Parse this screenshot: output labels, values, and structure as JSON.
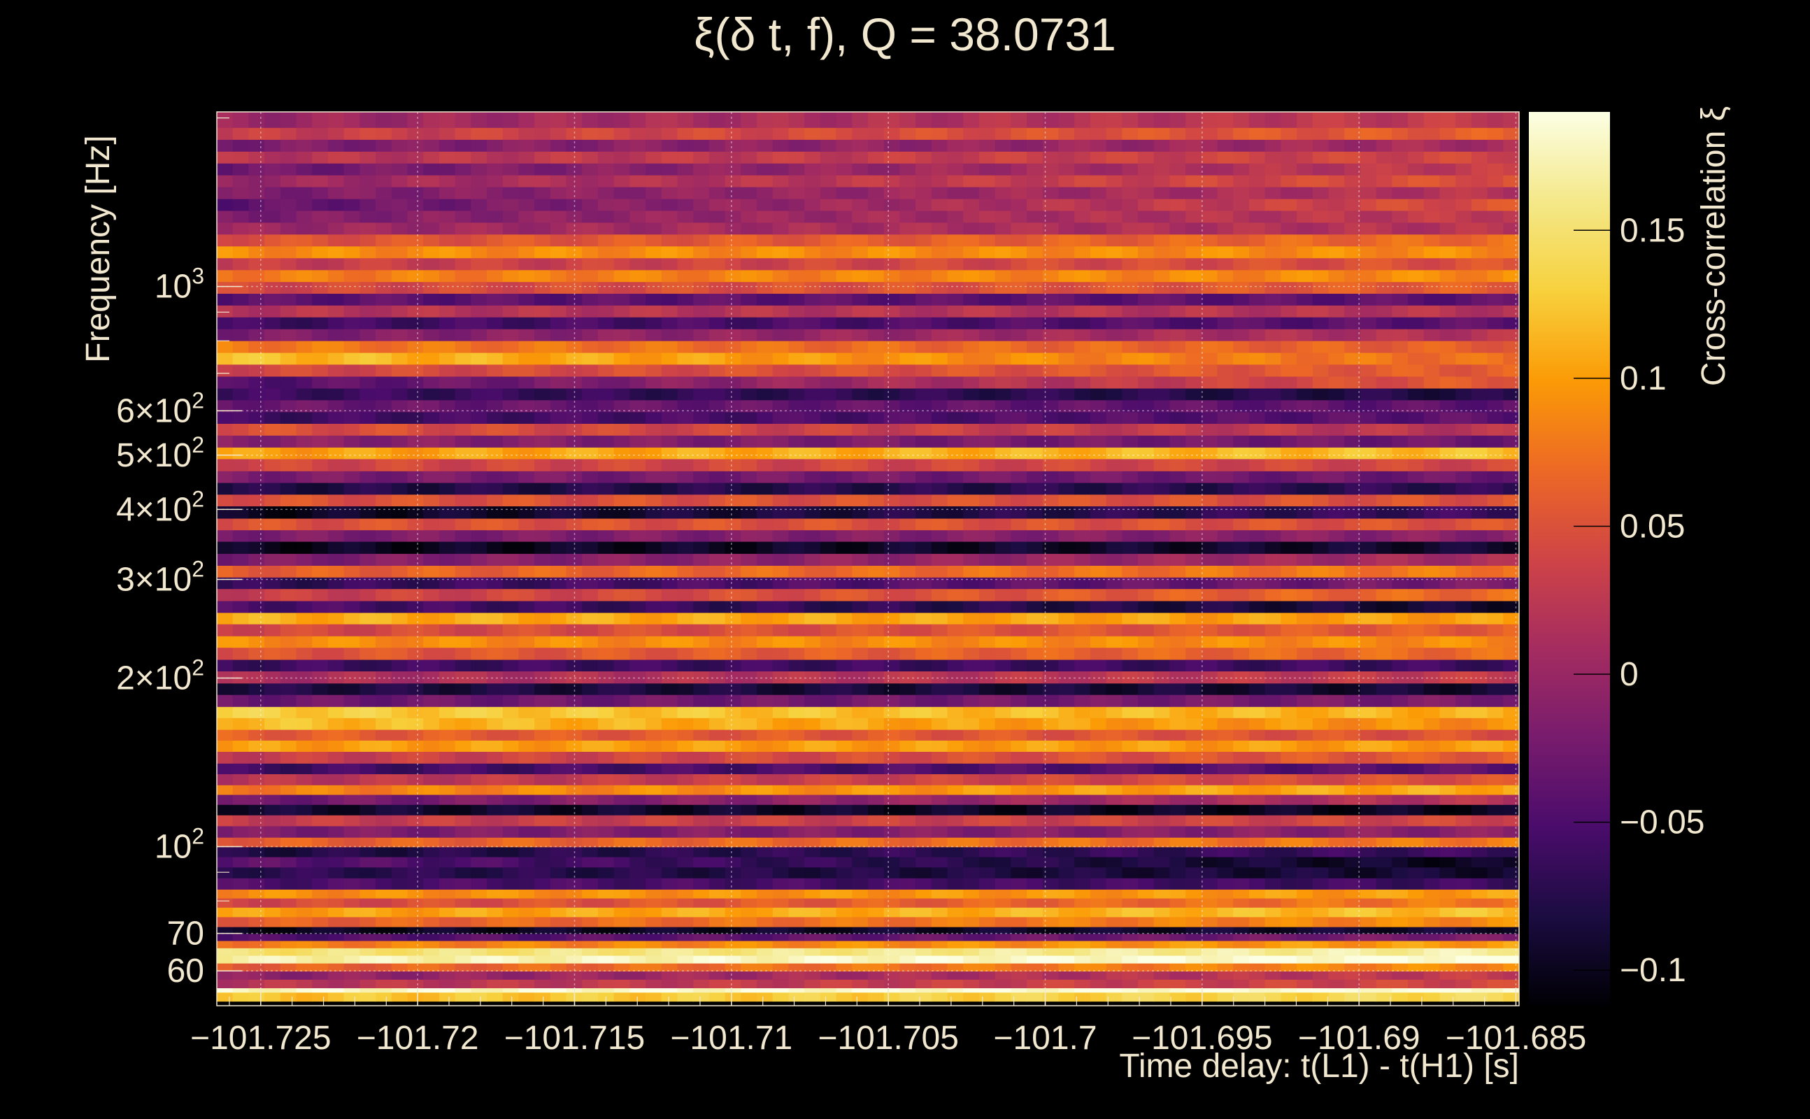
{
  "chart_data": {
    "type": "heatmap",
    "title": "ξ(δ t, f), Q = 38.0731",
    "xlabel": "Time delay: t(L1) - t(H1) [s]",
    "ylabel": "Frequency [Hz]",
    "colorbar_label": "Cross-correlation ξ",
    "colormap": "inferno",
    "xlim": [
      -101.7264,
      -101.6849
    ],
    "ylim": [
      52,
      2050
    ],
    "yscale": "log",
    "clim": [
      -0.112,
      0.19
    ],
    "x_ticks": [
      {
        "value": -101.725,
        "label": "−101.725"
      },
      {
        "value": -101.72,
        "label": "−101.72"
      },
      {
        "value": -101.715,
        "label": "−101.715"
      },
      {
        "value": -101.71,
        "label": "−101.71"
      },
      {
        "value": -101.705,
        "label": "−101.705"
      },
      {
        "value": -101.7,
        "label": "−101.7"
      },
      {
        "value": -101.695,
        "label": "−101.695"
      },
      {
        "value": -101.69,
        "label": "−101.69"
      },
      {
        "value": -101.685,
        "label": "−101.685"
      }
    ],
    "y_ticks": [
      {
        "value": 60,
        "label": "60",
        "sup": ""
      },
      {
        "value": 70,
        "label": "70",
        "sup": ""
      },
      {
        "value": 100,
        "label": "10",
        "sup": "2"
      },
      {
        "value": 200,
        "label": "2×10",
        "sup": "2"
      },
      {
        "value": 300,
        "label": "3×10",
        "sup": "2"
      },
      {
        "value": 400,
        "label": "4×10",
        "sup": "2"
      },
      {
        "value": 500,
        "label": "5×10",
        "sup": "2"
      },
      {
        "value": 600,
        "label": "6×10",
        "sup": "2"
      },
      {
        "value": 1000,
        "label": "10",
        "sup": "3"
      }
    ],
    "colorbar_ticks": [
      {
        "value": -0.1,
        "label": "−0.1"
      },
      {
        "value": -0.05,
        "label": "−0.05"
      },
      {
        "value": 0,
        "label": "0"
      },
      {
        "value": 0.05,
        "label": "0.05"
      },
      {
        "value": 0.1,
        "label": "0.1"
      },
      {
        "value": 0.15,
        "label": "0.15"
      }
    ],
    "bands": [
      {
        "f": [
          53,
          55
        ],
        "xi": [
          0.12,
          0.14
        ]
      },
      {
        "f": [
          55,
          56
        ],
        "xi": [
          0.18,
          0.19
        ]
      },
      {
        "f": [
          56,
          58
        ],
        "xi": [
          0.02,
          0.04
        ]
      },
      {
        "f": [
          58,
          60
        ],
        "xi": [
          -0.01,
          0.03
        ]
      },
      {
        "f": [
          60,
          62
        ],
        "xi": [
          0.06,
          0.09
        ]
      },
      {
        "f": [
          62,
          64
        ],
        "xi": [
          0.17,
          0.19
        ]
      },
      {
        "f": [
          64,
          66
        ],
        "xi": [
          0.15,
          0.17
        ]
      },
      {
        "f": [
          66,
          68
        ],
        "xi": [
          0.08,
          0.1
        ]
      },
      {
        "f": [
          68,
          70
        ],
        "xi": [
          -0.05,
          -0.02
        ]
      },
      {
        "f": [
          70,
          72
        ],
        "xi": [
          -0.1,
          -0.09
        ]
      },
      {
        "f": [
          72,
          75
        ],
        "xi": [
          0.06,
          0.09
        ]
      },
      {
        "f": [
          75,
          78
        ],
        "xi": [
          0.1,
          0.12
        ]
      },
      {
        "f": [
          78,
          81
        ],
        "xi": [
          0.04,
          0.08
        ]
      },
      {
        "f": [
          81,
          84
        ],
        "xi": [
          0.09,
          0.1
        ]
      },
      {
        "f": [
          84,
          88
        ],
        "xi": [
          -0.05,
          -0.06
        ]
      },
      {
        "f": [
          88,
          92
        ],
        "xi": [
          -0.07,
          -0.09
        ]
      },
      {
        "f": [
          92,
          96
        ],
        "xi": [
          -0.04,
          -0.1
        ]
      },
      {
        "f": [
          96,
          100
        ],
        "xi": [
          -0.08,
          -0.06
        ]
      },
      {
        "f": [
          100,
          104
        ],
        "xi": [
          0.06,
          0.08
        ]
      },
      {
        "f": [
          104,
          109
        ],
        "xi": [
          -0.02,
          -0.01
        ]
      },
      {
        "f": [
          109,
          114
        ],
        "xi": [
          0.03,
          0.04
        ]
      },
      {
        "f": [
          114,
          119
        ],
        "xi": [
          -0.09,
          -0.1
        ]
      },
      {
        "f": [
          119,
          124
        ],
        "xi": [
          -0.03,
          0.02
        ]
      },
      {
        "f": [
          124,
          129
        ],
        "xi": [
          0.08,
          0.11
        ]
      },
      {
        "f": [
          129,
          135
        ],
        "xi": [
          0.02,
          0.05
        ]
      },
      {
        "f": [
          135,
          141
        ],
        "xi": [
          -0.06,
          -0.04
        ]
      },
      {
        "f": [
          141,
          148
        ],
        "xi": [
          0.03,
          0.06
        ]
      },
      {
        "f": [
          148,
          155
        ],
        "xi": [
          0.1,
          0.1
        ]
      },
      {
        "f": [
          155,
          162
        ],
        "xi": [
          0.06,
          0.05
        ]
      },
      {
        "f": [
          162,
          170
        ],
        "xi": [
          0.12,
          0.09
        ]
      },
      {
        "f": [
          170,
          178
        ],
        "xi": [
          0.13,
          0.11
        ]
      },
      {
        "f": [
          178,
          187
        ],
        "xi": [
          -0.03,
          -0.02
        ]
      },
      {
        "f": [
          187,
          196
        ],
        "xi": [
          -0.08,
          -0.09
        ]
      },
      {
        "f": [
          196,
          206
        ],
        "xi": [
          0.01,
          0.03
        ]
      },
      {
        "f": [
          206,
          216
        ],
        "xi": [
          -0.06,
          -0.06
        ]
      },
      {
        "f": [
          216,
          227
        ],
        "xi": [
          0.05,
          0.07
        ]
      },
      {
        "f": [
          227,
          238
        ],
        "xi": [
          0.09,
          0.09
        ]
      },
      {
        "f": [
          238,
          250
        ],
        "xi": [
          0.04,
          0.06
        ]
      },
      {
        "f": [
          250,
          262
        ],
        "xi": [
          0.11,
          0.1
        ]
      },
      {
        "f": [
          262,
          275
        ],
        "xi": [
          -0.05,
          -0.09
        ]
      },
      {
        "f": [
          275,
          289
        ],
        "xi": [
          0.03,
          0.07
        ]
      },
      {
        "f": [
          289,
          303
        ],
        "xi": [
          -0.07,
          -0.02
        ]
      },
      {
        "f": [
          303,
          318
        ],
        "xi": [
          0.06,
          0.08
        ]
      },
      {
        "f": [
          318,
          334
        ],
        "xi": [
          -0.02,
          0.01
        ]
      },
      {
        "f": [
          334,
          351
        ],
        "xi": [
          -0.1,
          -0.09
        ]
      },
      {
        "f": [
          351,
          368
        ],
        "xi": [
          -0.02,
          -0.01
        ]
      },
      {
        "f": [
          368,
          386
        ],
        "xi": [
          0.05,
          0.05
        ]
      },
      {
        "f": [
          386,
          406
        ],
        "xi": [
          -0.1,
          -0.06
        ]
      },
      {
        "f": [
          406,
          426
        ],
        "xi": [
          0.05,
          0.05
        ]
      },
      {
        "f": [
          426,
          447
        ],
        "xi": [
          -0.08,
          -0.07
        ]
      },
      {
        "f": [
          447,
          469
        ],
        "xi": [
          -0.02,
          -0.03
        ]
      },
      {
        "f": [
          469,
          493
        ],
        "xi": [
          0.04,
          0.04
        ]
      },
      {
        "f": [
          493,
          517
        ],
        "xi": [
          0.1,
          0.12
        ]
      },
      {
        "f": [
          517,
          543
        ],
        "xi": [
          -0.01,
          -0.03
        ]
      },
      {
        "f": [
          543,
          570
        ],
        "xi": [
          0.05,
          0.02
        ]
      },
      {
        "f": [
          570,
          598
        ],
        "xi": [
          -0.06,
          -0.04
        ]
      },
      {
        "f": [
          598,
          628
        ],
        "xi": [
          -0.03,
          -0.04
        ]
      },
      {
        "f": [
          628,
          659
        ],
        "xi": [
          -0.06,
          -0.08
        ]
      },
      {
        "f": [
          659,
          692
        ],
        "xi": [
          -0.05,
          0.06
        ]
      },
      {
        "f": [
          692,
          727
        ],
        "xi": [
          0.04,
          0.06
        ]
      },
      {
        "f": [
          727,
          763
        ],
        "xi": [
          0.12,
          0.07
        ]
      },
      {
        "f": [
          763,
          801
        ],
        "xi": [
          0.08,
          0.06
        ]
      },
      {
        "f": [
          801,
          841
        ],
        "xi": [
          -0.02,
          0.02
        ]
      },
      {
        "f": [
          841,
          883
        ],
        "xi": [
          -0.06,
          -0.04
        ]
      },
      {
        "f": [
          883,
          927
        ],
        "xi": [
          0.02,
          0.02
        ]
      },
      {
        "f": [
          927,
          973
        ],
        "xi": [
          -0.04,
          -0.04
        ]
      },
      {
        "f": [
          973,
          1021
        ],
        "xi": [
          0.04,
          0.06
        ]
      },
      {
        "f": [
          1021,
          1072
        ],
        "xi": [
          0.08,
          0.09
        ]
      },
      {
        "f": [
          1072,
          1126
        ],
        "xi": [
          0.03,
          0.05
        ]
      },
      {
        "f": [
          1126,
          1182
        ],
        "xi": [
          0.09,
          0.09
        ]
      },
      {
        "f": [
          1182,
          1241
        ],
        "xi": [
          0.05,
          0.07
        ]
      },
      {
        "f": [
          1241,
          1303
        ],
        "xi": [
          0.0,
          0.02
        ]
      },
      {
        "f": [
          1303,
          1368
        ],
        "xi": [
          -0.02,
          0.03
        ]
      },
      {
        "f": [
          1368,
          1436
        ],
        "xi": [
          -0.04,
          0.05
        ]
      },
      {
        "f": [
          1436,
          1508
        ],
        "xi": [
          -0.02,
          0.02
        ]
      },
      {
        "f": [
          1508,
          1583
        ],
        "xi": [
          0.0,
          0.05
        ]
      },
      {
        "f": [
          1583,
          1662
        ],
        "xi": [
          -0.03,
          0.03
        ]
      },
      {
        "f": [
          1662,
          1745
        ],
        "xi": [
          0.02,
          0.04
        ]
      },
      {
        "f": [
          1745,
          1832
        ],
        "xi": [
          -0.02,
          0.01
        ]
      },
      {
        "f": [
          1832,
          1924
        ],
        "xi": [
          0.03,
          0.06
        ]
      },
      {
        "f": [
          1924,
          2050
        ],
        "xi": [
          0.0,
          0.03
        ]
      }
    ]
  }
}
